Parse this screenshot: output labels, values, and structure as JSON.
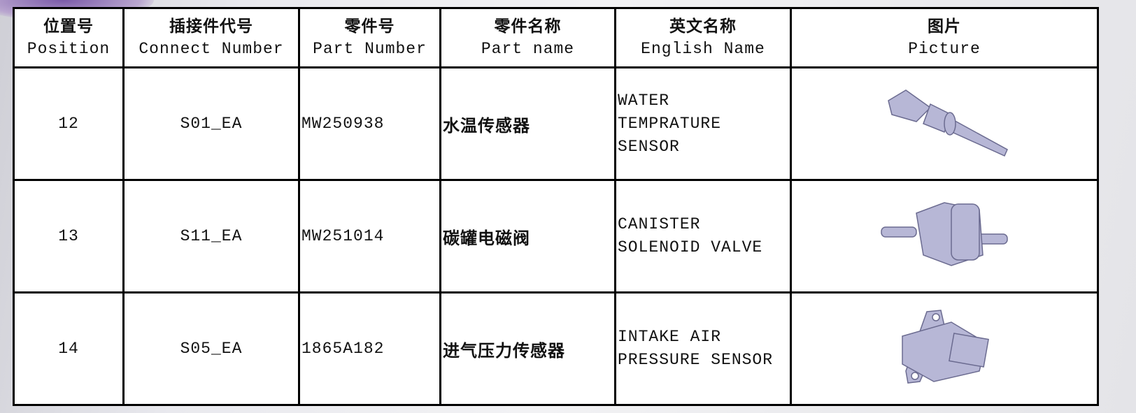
{
  "table": {
    "header": [
      {
        "zh": "位置号",
        "en": "Position"
      },
      {
        "zh": "插接件代号",
        "en": "Connect Number"
      },
      {
        "zh": "零件号",
        "en": "Part Number"
      },
      {
        "zh": "零件名称",
        "en": "Part name"
      },
      {
        "zh": "英文名称",
        "en": "English Name"
      },
      {
        "zh": "图片",
        "en": "Picture"
      }
    ],
    "rows": [
      {
        "position": "12",
        "connect": "S01_EA",
        "part_number": "MW250938",
        "part_name": "水温传感器",
        "english_name": [
          "WATER",
          "TEMPRATURE",
          "SENSOR"
        ]
      },
      {
        "position": "13",
        "connect": "S11_EA",
        "part_number": "MW251014",
        "part_name": "碳罐电磁阀",
        "english_name": [
          "CANISTER",
          "SOLENOID VALVE"
        ]
      },
      {
        "position": "14",
        "connect": "S05_EA",
        "part_number": "1865A182",
        "part_name": "进气压力传感器",
        "english_name": [
          "INTAKE AIR",
          "PRESSURE SENSOR"
        ]
      }
    ]
  }
}
